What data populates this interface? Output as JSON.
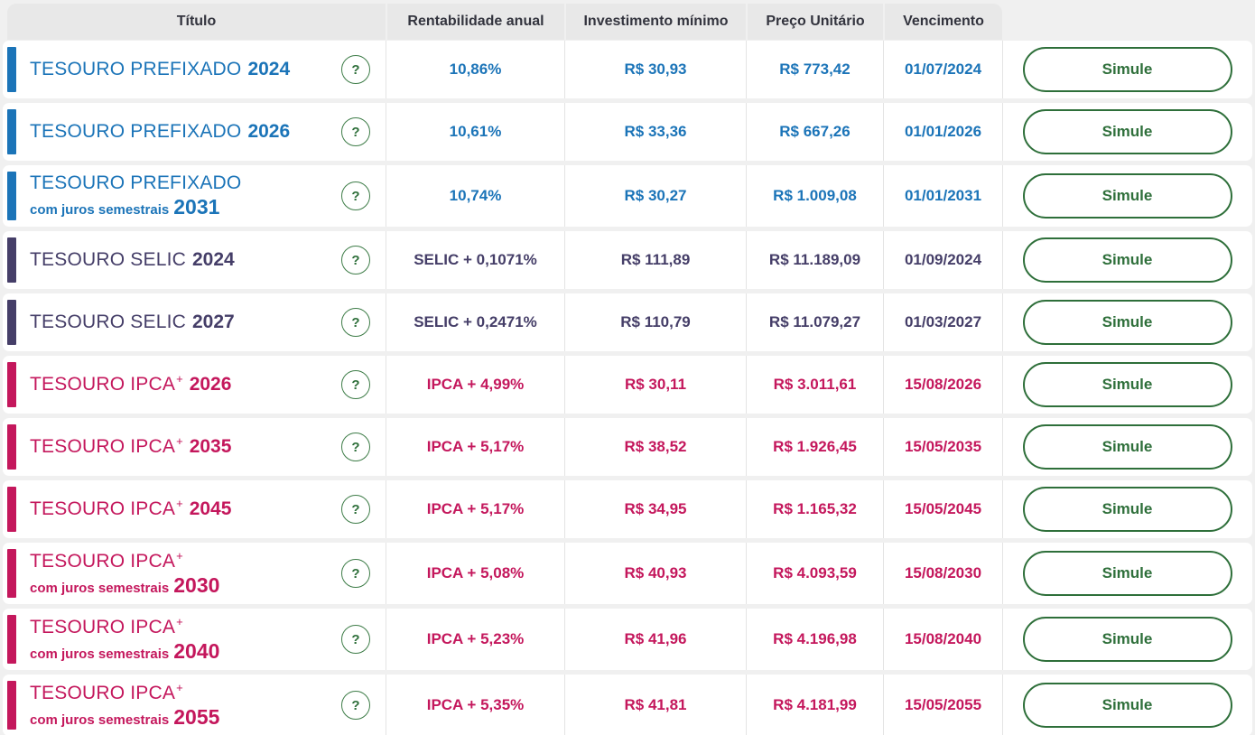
{
  "header": {
    "columns": [
      "Título",
      "Rentabilidade anual",
      "Investimento mínimo",
      "Preço Unitário",
      "Vencimento"
    ]
  },
  "actions": {
    "help_icon": "?",
    "simulate_label": "Simule"
  },
  "colors": {
    "page_bg": "#f0f0f0",
    "header_bg": "#e8e8e8",
    "header_text": "#33343e",
    "row_bg": "#ffffff",
    "divider": "#e4e4e4",
    "green": "#2e6f3a",
    "prefixado": "#1b74b8",
    "selic": "#453e68",
    "ipca": "#c4175c"
  },
  "rows": [
    {
      "title": "TESOURO PREFIXADO",
      "title_sup": "",
      "subtitle": "",
      "year": "2024",
      "theme": "prefixado",
      "rate": "10,86%",
      "min_investment": "R$ 30,93",
      "unit_price": "R$ 773,42",
      "maturity": "01/07/2024"
    },
    {
      "title": "TESOURO PREFIXADO",
      "title_sup": "",
      "subtitle": "",
      "year": "2026",
      "theme": "prefixado",
      "rate": "10,61%",
      "min_investment": "R$ 33,36",
      "unit_price": "R$ 667,26",
      "maturity": "01/01/2026"
    },
    {
      "title": "TESOURO PREFIXADO",
      "title_sup": "",
      "subtitle": "com juros semestrais",
      "year": "2031",
      "theme": "prefixado",
      "rate": "10,74%",
      "min_investment": "R$ 30,27",
      "unit_price": "R$ 1.009,08",
      "maturity": "01/01/2031"
    },
    {
      "title": "TESOURO SELIC",
      "title_sup": "",
      "subtitle": "",
      "year": "2024",
      "theme": "selic",
      "rate": "SELIC + 0,1071%",
      "min_investment": "R$ 111,89",
      "unit_price": "R$ 11.189,09",
      "maturity": "01/09/2024"
    },
    {
      "title": "TESOURO SELIC",
      "title_sup": "",
      "subtitle": "",
      "year": "2027",
      "theme": "selic",
      "rate": "SELIC + 0,2471%",
      "min_investment": "R$ 110,79",
      "unit_price": "R$ 11.079,27",
      "maturity": "01/03/2027"
    },
    {
      "title": "TESOURO IPCA",
      "title_sup": "+",
      "subtitle": "",
      "year": "2026",
      "theme": "ipca",
      "rate": "IPCA + 4,99%",
      "min_investment": "R$ 30,11",
      "unit_price": "R$ 3.011,61",
      "maturity": "15/08/2026"
    },
    {
      "title": "TESOURO IPCA",
      "title_sup": "+",
      "subtitle": "",
      "year": "2035",
      "theme": "ipca",
      "rate": "IPCA + 5,17%",
      "min_investment": "R$ 38,52",
      "unit_price": "R$ 1.926,45",
      "maturity": "15/05/2035"
    },
    {
      "title": "TESOURO IPCA",
      "title_sup": "+",
      "subtitle": "",
      "year": "2045",
      "theme": "ipca",
      "rate": "IPCA + 5,17%",
      "min_investment": "R$ 34,95",
      "unit_price": "R$ 1.165,32",
      "maturity": "15/05/2045"
    },
    {
      "title": "TESOURO IPCA",
      "title_sup": "+",
      "subtitle": "com juros semestrais",
      "year": "2030",
      "theme": "ipca",
      "rate": "IPCA + 5,08%",
      "min_investment": "R$ 40,93",
      "unit_price": "R$ 4.093,59",
      "maturity": "15/08/2030"
    },
    {
      "title": "TESOURO IPCA",
      "title_sup": "+",
      "subtitle": "com juros semestrais",
      "year": "2040",
      "theme": "ipca",
      "rate": "IPCA + 5,23%",
      "min_investment": "R$ 41,96",
      "unit_price": "R$ 4.196,98",
      "maturity": "15/08/2040"
    },
    {
      "title": "TESOURO IPCA",
      "title_sup": "+",
      "subtitle": "com juros semestrais",
      "year": "2055",
      "theme": "ipca",
      "rate": "IPCA + 5,35%",
      "min_investment": "R$ 41,81",
      "unit_price": "R$ 4.181,99",
      "maturity": "15/05/2055"
    }
  ]
}
